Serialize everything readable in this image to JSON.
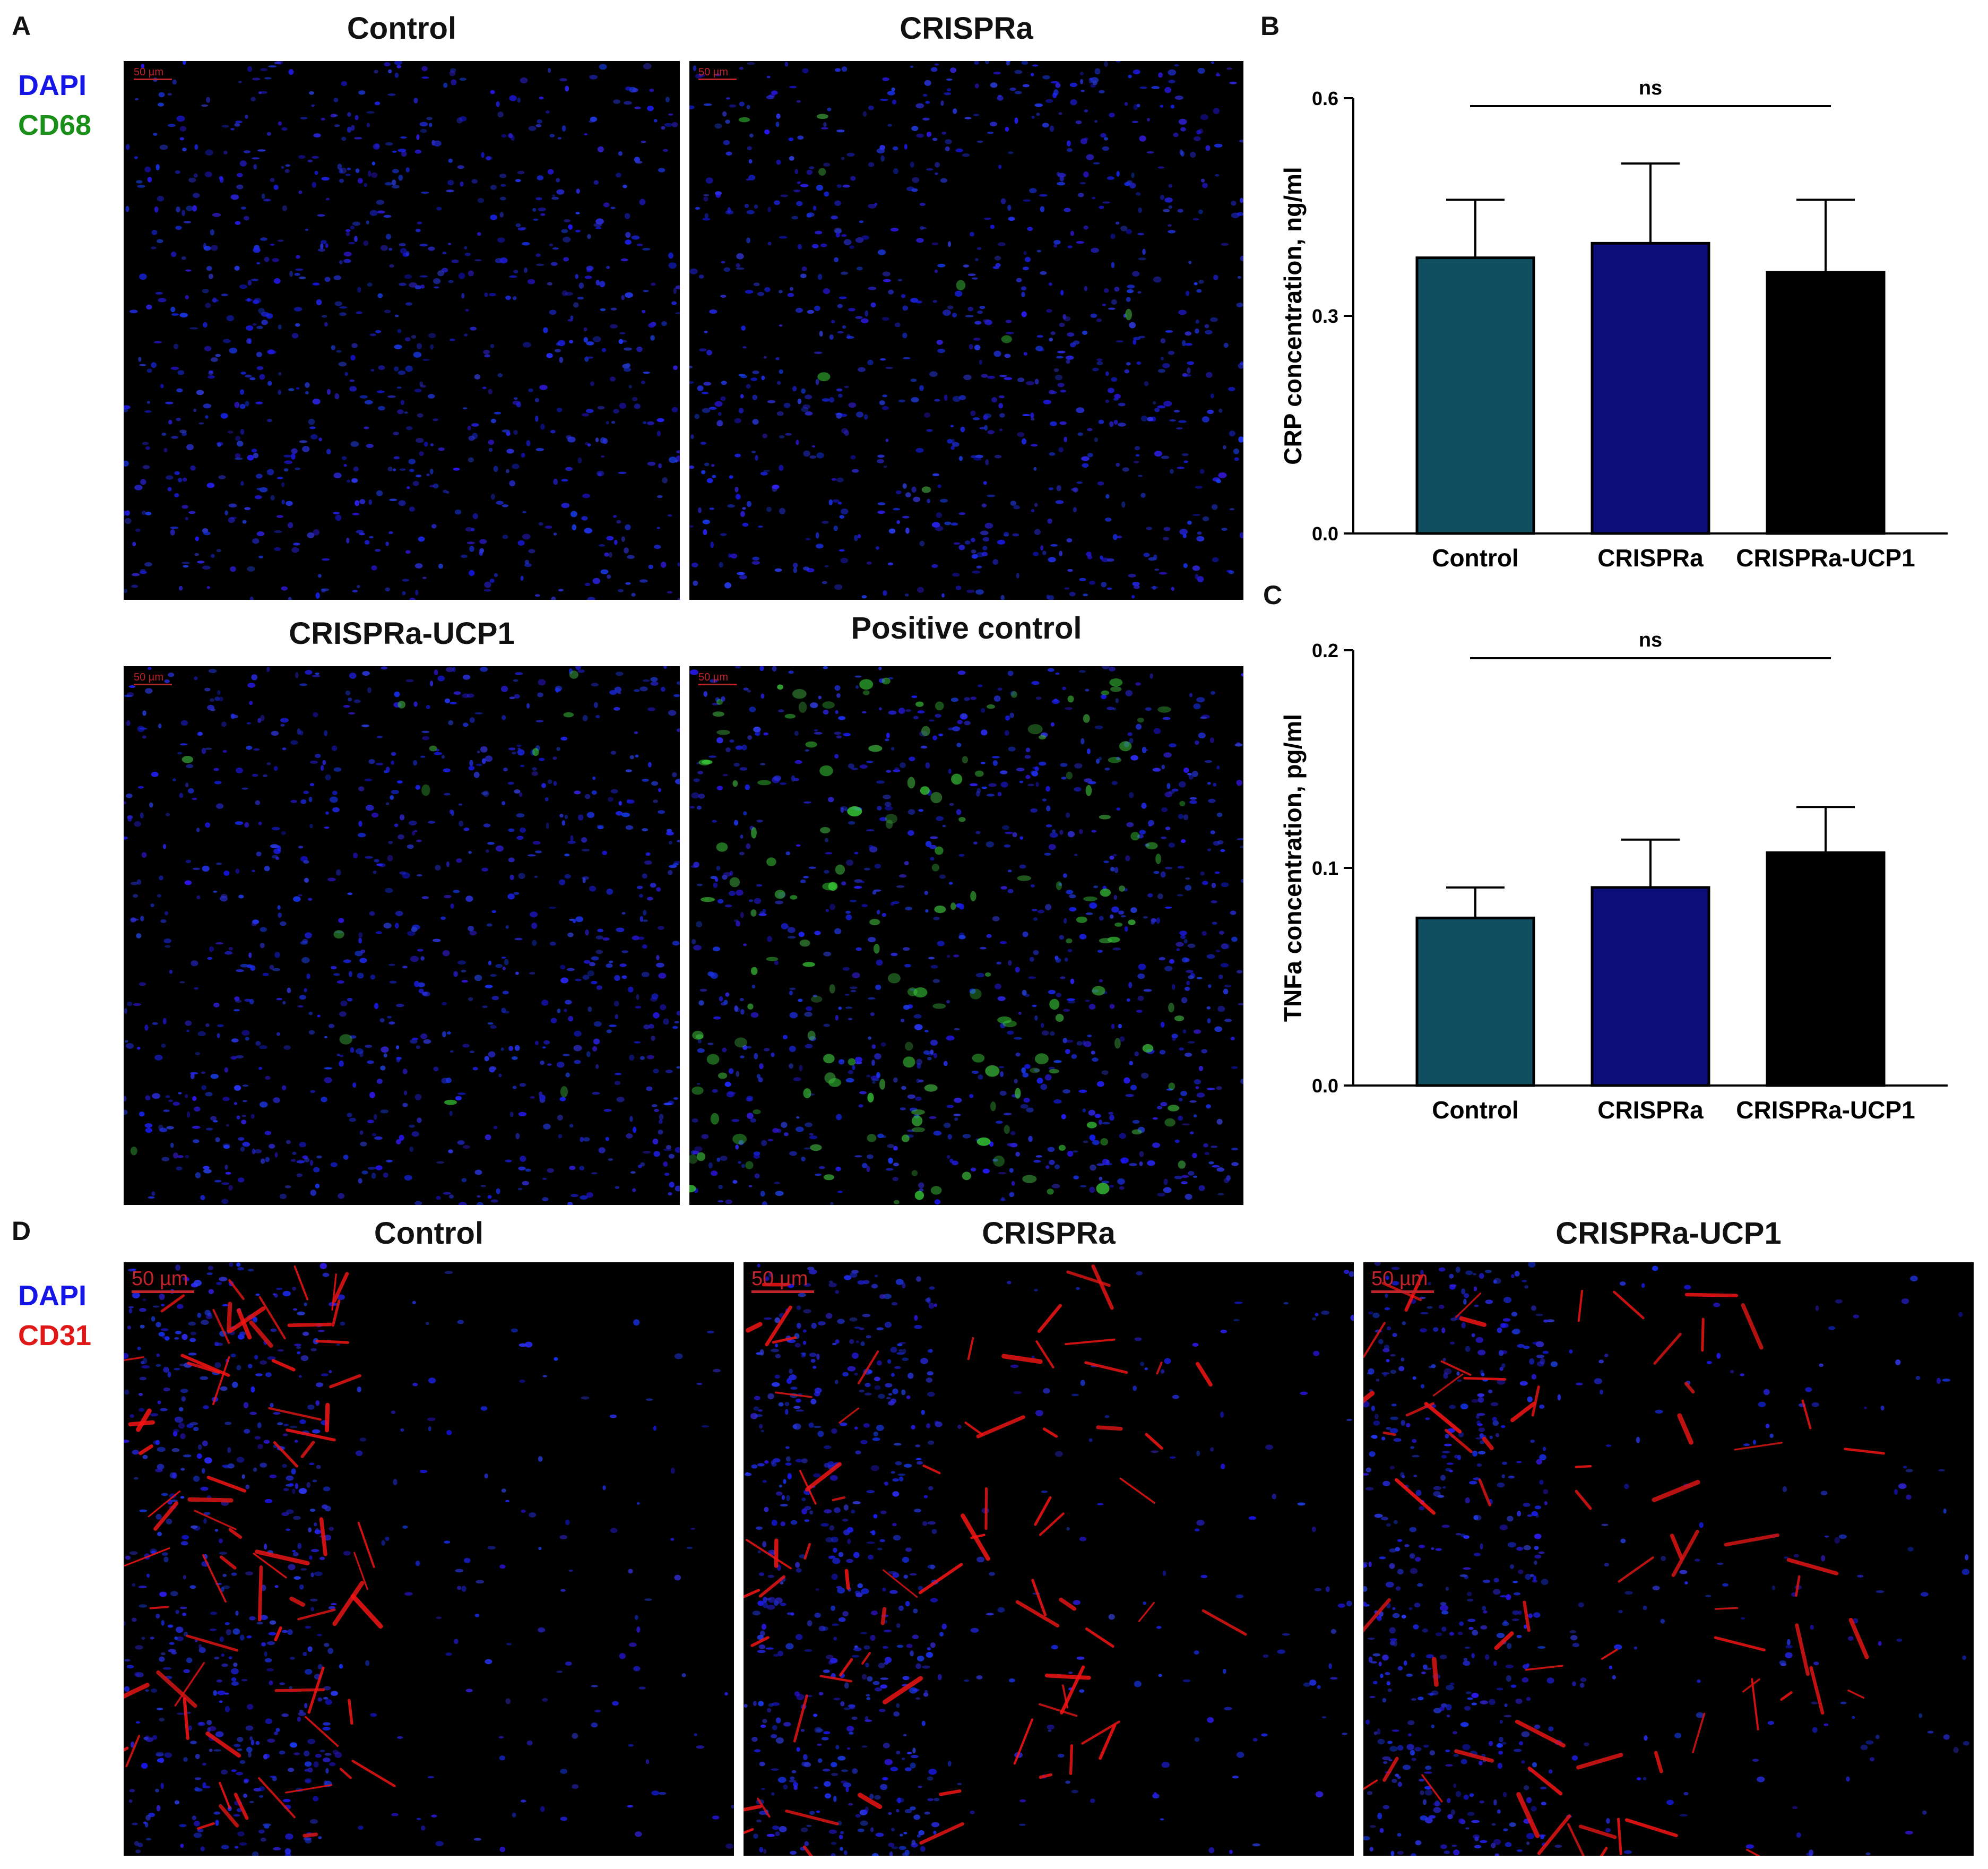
{
  "panel_letters": {
    "a": "A",
    "b": "B",
    "c": "C",
    "d": "D"
  },
  "panel_a": {
    "legend": [
      {
        "label": "DAPI",
        "color": "#1515e6"
      },
      {
        "label": "CD68",
        "color": "#1a8f1a"
      }
    ],
    "images": [
      {
        "title": "Control",
        "scale_label": "50 µm",
        "green_level": 0.0
      },
      {
        "title": "CRISPRa",
        "scale_label": "50 µm",
        "green_level": 0.05
      },
      {
        "title": "CRISPRa-UCP1",
        "scale_label": "50 µm",
        "green_level": 0.08
      },
      {
        "title": "Positive control",
        "scale_label": "50 µm",
        "green_level": 1.0
      }
    ]
  },
  "panel_d": {
    "legend": [
      {
        "label": "DAPI",
        "color": "#1515e6"
      },
      {
        "label": "CD31",
        "color": "#e01818"
      }
    ],
    "images": [
      {
        "title": "Control",
        "scale_label": "50 µm"
      },
      {
        "title": "CRISPRa",
        "scale_label": "50 µm"
      },
      {
        "title": "CRISPRa-UCP1",
        "scale_label": "50 µm"
      }
    ]
  },
  "chart_data": [
    {
      "type": "bar",
      "panel": "B",
      "categories": [
        "Control",
        "CRISPRa",
        "CRISPRa-UCP1"
      ],
      "values": [
        0.38,
        0.4,
        0.36
      ],
      "errors": [
        0.08,
        0.11,
        0.1
      ],
      "colors": [
        "#0f4f5f",
        "#0c0c7a",
        "#000000"
      ],
      "ylabel": "CRP concentration, ng/ml",
      "ylim": [
        0,
        0.6
      ],
      "yticks": [
        0.0,
        0.3,
        0.6
      ],
      "ytick_labels": [
        "0.0",
        "0.3",
        "0.6"
      ],
      "annotation": "ns",
      "grid": false
    },
    {
      "type": "bar",
      "panel": "C",
      "categories": [
        "Control",
        "CRISPRa",
        "CRISPRa-UCP1"
      ],
      "values": [
        0.077,
        0.091,
        0.107
      ],
      "errors": [
        0.014,
        0.022,
        0.021
      ],
      "colors": [
        "#0f4f5f",
        "#0c0c7a",
        "#000000"
      ],
      "ylabel": "TNFa concentration, pg/ml",
      "ylim": [
        0,
        0.2
      ],
      "yticks": [
        0.0,
        0.1,
        0.2
      ],
      "ytick_labels": [
        "0.0",
        "0.1",
        "0.2"
      ],
      "annotation": "ns",
      "grid": false
    }
  ]
}
